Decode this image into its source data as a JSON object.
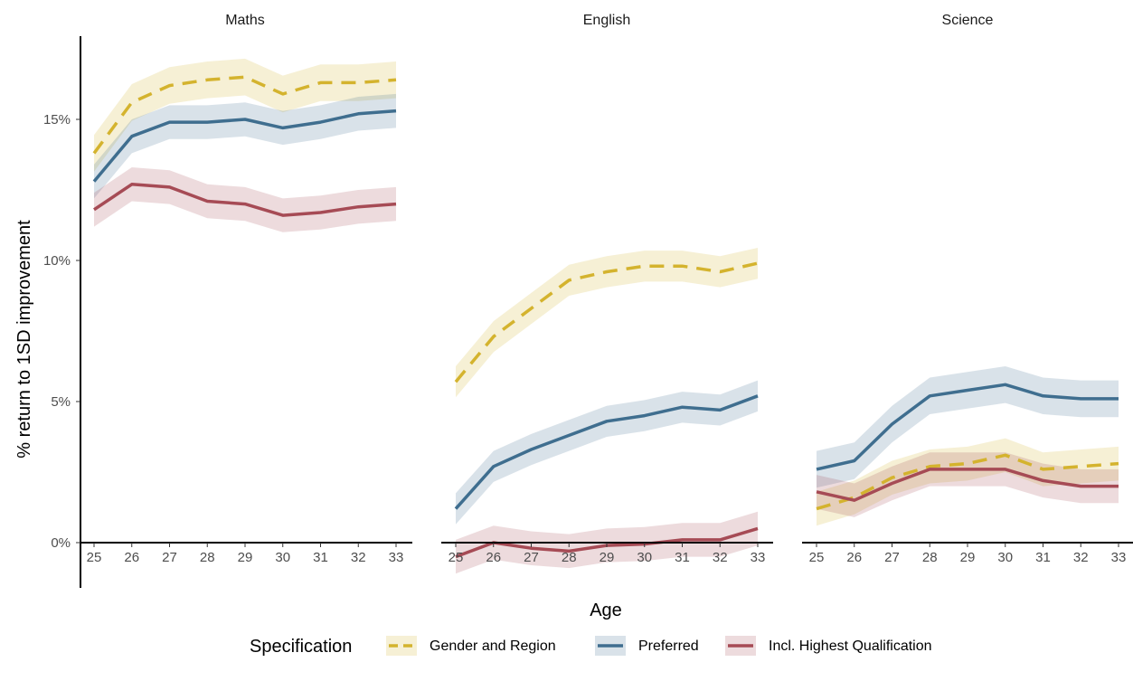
{
  "chart_data": {
    "type": "line",
    "ylabel": "% return to 1SD improvement",
    "xlabel": "Age",
    "x": [
      25,
      26,
      27,
      28,
      29,
      30,
      31,
      32,
      33
    ],
    "ylim": [
      -0.9,
      18.0
    ],
    "yticks": [
      0,
      5,
      10,
      15
    ],
    "ytick_labels": [
      "0%",
      "5%",
      "10%",
      "15%"
    ],
    "grid": false,
    "legend": {
      "title": "Specification",
      "position": "bottom",
      "entries": [
        "Gender and Region",
        "Preferred",
        "Incl. Highest Qualification"
      ]
    },
    "colors": {
      "Gender and Region": "#d4b32e",
      "Preferred": "#3f6e8f",
      "Incl. Highest Qualification": "#a64b55"
    },
    "panels": [
      {
        "title": "Maths",
        "series": [
          {
            "name": "Gender and Region",
            "values": [
              13.8,
              15.6,
              16.2,
              16.4,
              16.5,
              15.9,
              16.3,
              16.3,
              16.4
            ],
            "ci": 0.65
          },
          {
            "name": "Preferred",
            "values": [
              12.8,
              14.4,
              14.9,
              14.9,
              15.0,
              14.7,
              14.9,
              15.2,
              15.3
            ],
            "ci": 0.6
          },
          {
            "name": "Incl. Highest Qualification",
            "values": [
              11.8,
              12.7,
              12.6,
              12.1,
              12.0,
              11.6,
              11.7,
              11.9,
              12.0
            ],
            "ci": 0.6
          }
        ]
      },
      {
        "title": "English",
        "series": [
          {
            "name": "Gender and Region",
            "values": [
              5.7,
              7.3,
              8.3,
              9.3,
              9.6,
              9.8,
              9.8,
              9.6,
              9.9
            ],
            "ci": 0.55
          },
          {
            "name": "Preferred",
            "values": [
              1.2,
              2.7,
              3.3,
              3.8,
              4.3,
              4.5,
              4.8,
              4.7,
              5.2
            ],
            "ci": 0.55
          },
          {
            "name": "Incl. Highest Qualification",
            "values": [
              -0.5,
              0.0,
              -0.2,
              -0.3,
              -0.1,
              -0.05,
              0.1,
              0.1,
              0.5
            ],
            "ci": 0.6
          }
        ]
      },
      {
        "title": "Science",
        "series": [
          {
            "name": "Gender and Region",
            "values": [
              1.2,
              1.6,
              2.3,
              2.7,
              2.8,
              3.1,
              2.6,
              2.7,
              2.8
            ],
            "ci": 0.6
          },
          {
            "name": "Preferred",
            "values": [
              2.6,
              2.9,
              4.2,
              5.2,
              5.4,
              5.6,
              5.2,
              5.1,
              5.1
            ],
            "ci": 0.65
          },
          {
            "name": "Incl. Highest Qualification",
            "values": [
              1.8,
              1.5,
              2.1,
              2.6,
              2.6,
              2.6,
              2.2,
              2.0,
              2.0
            ],
            "ci": 0.6
          }
        ]
      }
    ]
  }
}
